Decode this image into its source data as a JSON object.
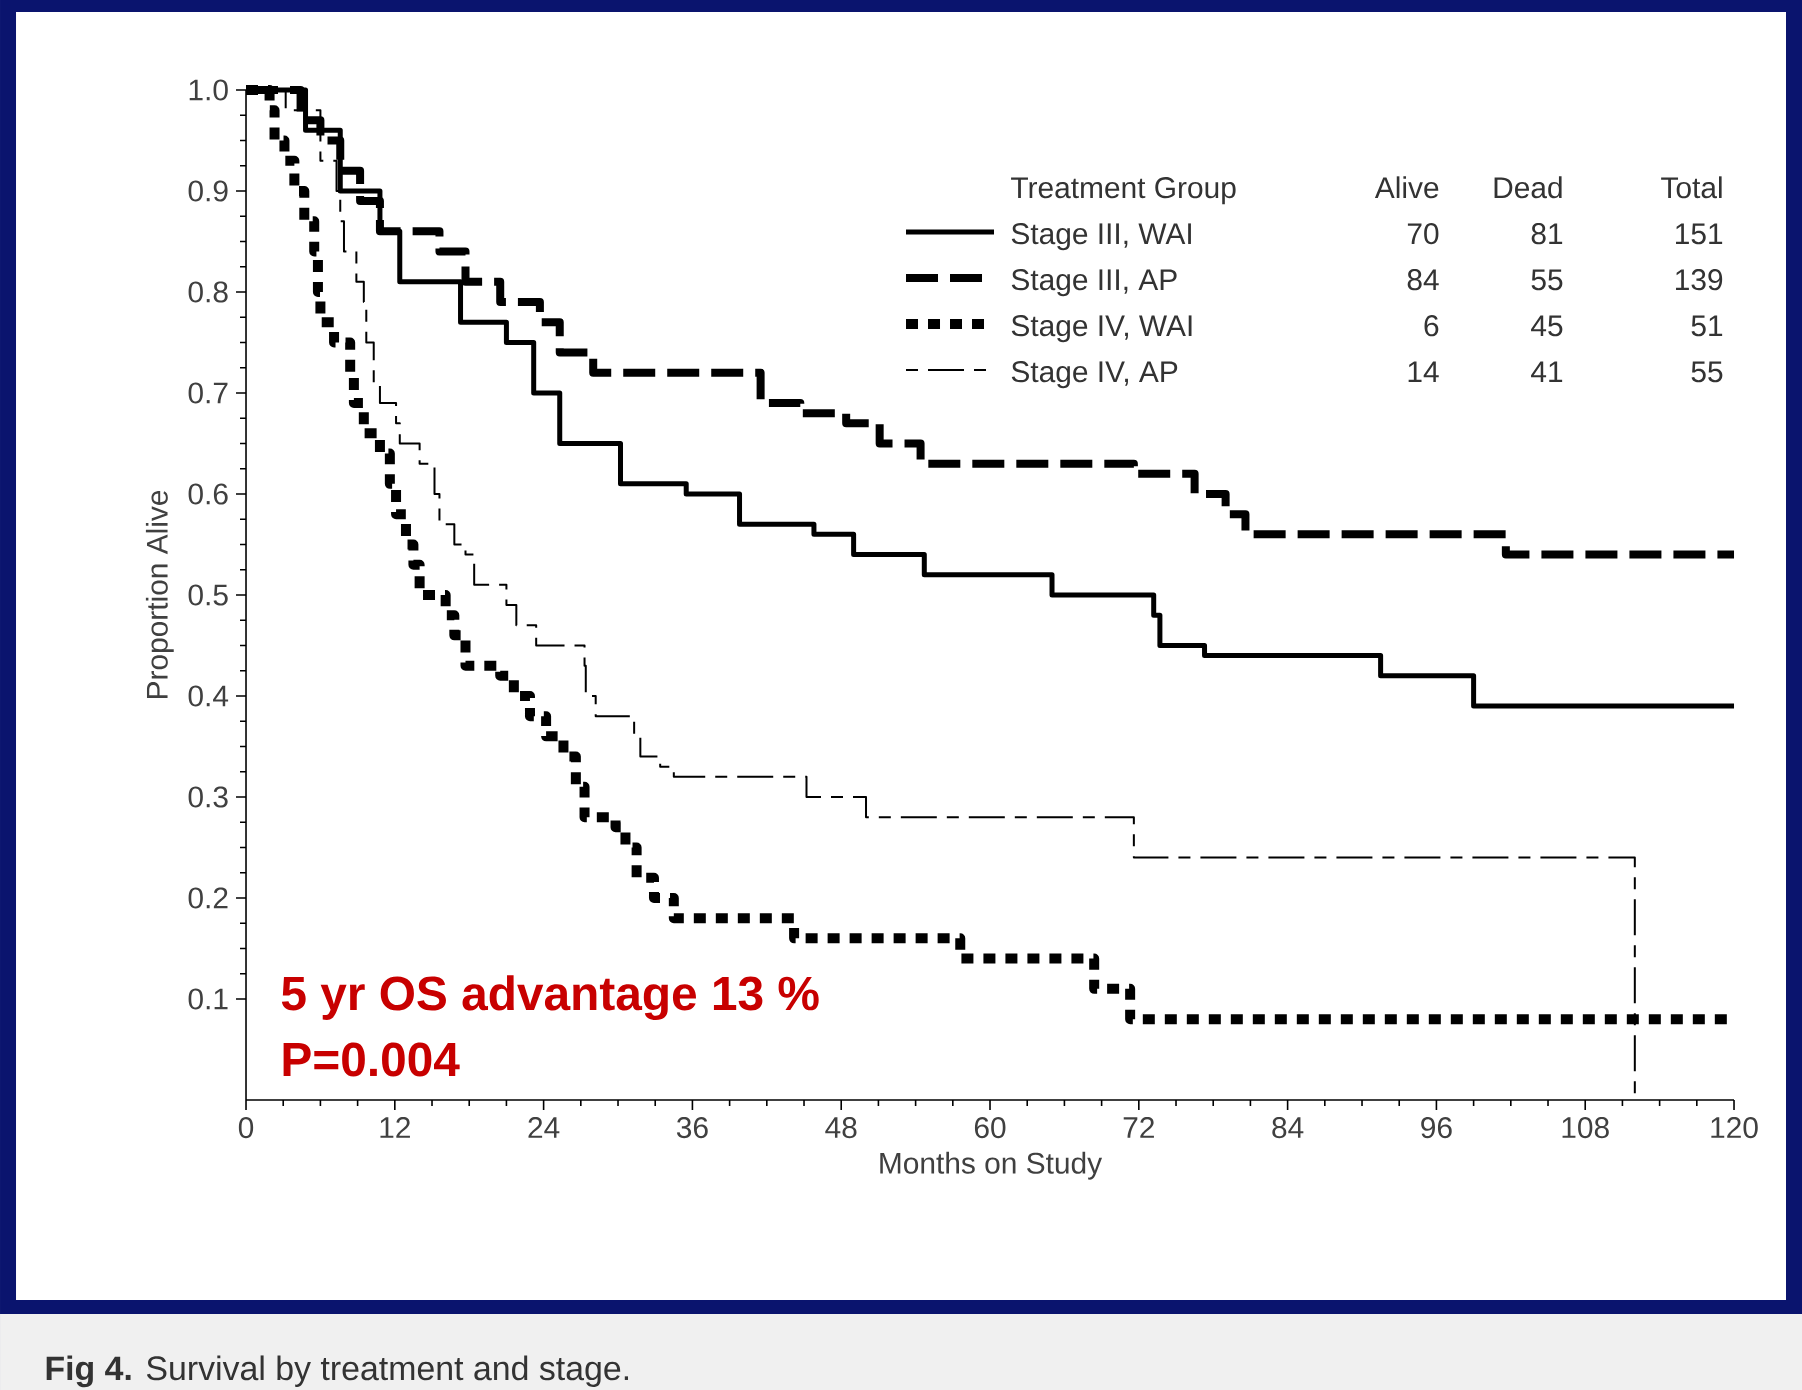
{
  "chart_data": {
    "type": "step",
    "xlabel": "Months on Study",
    "ylabel": "Proportion Alive",
    "legend_title": "Treatment Group",
    "legend": "top right",
    "marker": "none",
    "xlim": [
      0,
      120
    ],
    "ylim": [
      0,
      1.0
    ],
    "xticks": [
      0,
      12,
      24,
      36,
      48,
      60,
      72,
      84,
      96,
      108,
      120
    ],
    "yticks": [
      0.1,
      0.2,
      0.3,
      0.4,
      0.5,
      0.6,
      0.7,
      0.8,
      0.9,
      {
        "value": 1.0,
        "label": "1.0"
      }
    ],
    "series": [
      {
        "name": "Stage III, WAI",
        "color": "#000000",
        "line_style": "solid",
        "x": [
          0,
          4.8,
          7.6,
          10.8,
          12.4,
          15.6,
          17.3,
          21,
          23.2,
          25.3,
          30.2,
          35.5,
          39.8,
          45.8,
          49,
          54.7,
          65,
          73.2,
          73.7,
          77.3,
          91.5,
          99,
          120
        ],
        "values": [
          1,
          0.96,
          0.9,
          0.86,
          0.81,
          0.81,
          0.77,
          0.75,
          0.7,
          0.65,
          0.61,
          0.6,
          0.57,
          0.56,
          0.54,
          0.52,
          0.5,
          0.48,
          0.45,
          0.44,
          0.42,
          0.39,
          0.39
        ]
      },
      {
        "name": "Stage III, AP",
        "color": "#000000",
        "line_style": "dashed",
        "x": [
          0,
          4.4,
          6,
          7.6,
          9.2,
          10.8,
          15.6,
          17.7,
          20.5,
          23.7,
          25.3,
          28,
          41.5,
          44.7,
          48.4,
          51.1,
          54.4,
          58,
          71.6,
          76.5,
          79,
          80.6,
          101.6,
          120
        ],
        "values": [
          1,
          0.97,
          0.95,
          0.92,
          0.89,
          0.86,
          0.84,
          0.81,
          0.79,
          0.77,
          0.74,
          0.72,
          0.69,
          0.68,
          0.67,
          0.65,
          0.63,
          0.63,
          0.62,
          0.6,
          0.58,
          0.56,
          0.54,
          0.54
        ]
      },
      {
        "name": "Stage IV, WAI",
        "color": "#000000",
        "line_style": "dotted",
        "x": [
          0,
          1.9,
          2.3,
          3.1,
          3.9,
          4.7,
          5.5,
          5.8,
          6,
          7.1,
          8.4,
          8.7,
          9.5,
          10.8,
          11.6,
          12.1,
          12.9,
          13.5,
          14,
          16.1,
          16.8,
          17.7,
          20.5,
          21.6,
          22.9,
          24.2,
          25.6,
          26.6,
          27.3,
          29.8,
          30.6,
          31.5,
          32.9,
          34.5,
          44.2,
          57.6,
          68.4,
          71.3,
          120
        ],
        "values": [
          1,
          0.98,
          0.95,
          0.93,
          0.9,
          0.87,
          0.84,
          0.8,
          0.77,
          0.75,
          0.72,
          0.69,
          0.66,
          0.64,
          0.61,
          0.58,
          0.55,
          0.53,
          0.5,
          0.48,
          0.46,
          0.43,
          0.42,
          0.4,
          0.38,
          0.36,
          0.34,
          0.31,
          0.28,
          0.27,
          0.25,
          0.22,
          0.2,
          0.18,
          0.16,
          0.14,
          0.11,
          0.08,
          0.08
        ]
      },
      {
        "name": "Stage IV, AP",
        "color": "#000000",
        "line_style": "dashed",
        "x": [
          0,
          3.2,
          6,
          7.3,
          7.6,
          7.9,
          8.9,
          9.5,
          9.7,
          10.3,
          10.8,
          12.1,
          12.4,
          14,
          15.2,
          15.6,
          16.8,
          17.7,
          18.4,
          21,
          21.8,
          23.4,
          27.3,
          27.4,
          28.2,
          31.3,
          31.8,
          33.4,
          34.5,
          45.2,
          50,
          71.6,
          112
        ],
        "values": [
          1,
          0.98,
          0.93,
          0.9,
          0.87,
          0.84,
          0.81,
          0.79,
          0.75,
          0.71,
          0.69,
          0.67,
          0.65,
          0.63,
          0.6,
          0.57,
          0.55,
          0.54,
          0.51,
          0.49,
          0.47,
          0.45,
          0.43,
          0.4,
          0.38,
          0.36,
          0.34,
          0.33,
          0.32,
          0.3,
          0.28,
          0.24,
          0
        ]
      }
    ],
    "annotations": [
      "Alive",
      "Dead",
      "Total",
      "70",
      "81",
      "151",
      "84",
      "55",
      "139",
      "6",
      "45",
      "51",
      "14",
      "41",
      "55",
      "5 yr OS advantage 13 %",
      "P=0.004",
      "**Fig 4.** Survival by treatment and stage."
    ]
  }
}
